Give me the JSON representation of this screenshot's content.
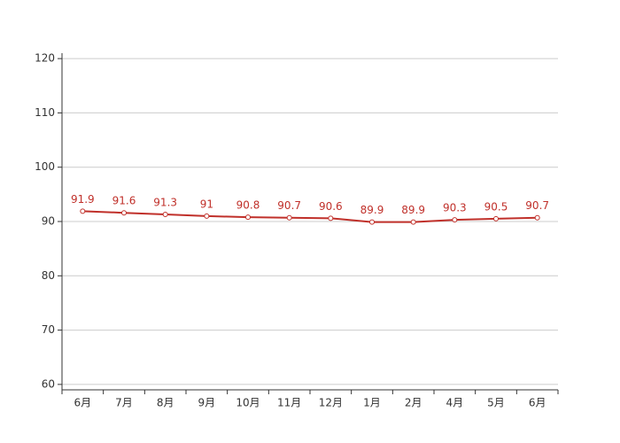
{
  "chart_data": {
    "type": "line",
    "categories": [
      "6月",
      "7月",
      "8月",
      "9月",
      "10月",
      "11月",
      "12月",
      "1月",
      "2月",
      "4月",
      "5月",
      "6月"
    ],
    "values": [
      91.9,
      91.6,
      91.3,
      91,
      90.8,
      90.7,
      90.6,
      89.9,
      89.9,
      90.3,
      90.5,
      90.7
    ],
    "color": "#c0302a",
    "ylim": [
      59,
      121
    ],
    "yticks": [
      60,
      70,
      80,
      90,
      100,
      110,
      120
    ],
    "grid": true
  }
}
